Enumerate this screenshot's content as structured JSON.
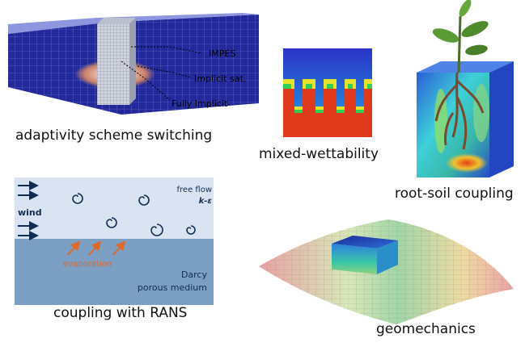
{
  "panels": {
    "adaptivity": {
      "caption": "adaptivity scheme switching",
      "labels": {
        "impes": "IMPES",
        "implicit_sat": "Implicit sat.",
        "fully_implicit": "Fully Implicit"
      }
    },
    "wettability": {
      "caption": "mixed-wettability"
    },
    "root_soil": {
      "caption": "root-soil coupling"
    },
    "rans": {
      "caption": "coupling with RANS",
      "free_flow": "free flow",
      "model": "k-ε",
      "wind": "wind",
      "evaporation": "evaporation",
      "darcy": "Darcy",
      "porous": "porous medium"
    },
    "geomechanics": {
      "caption": "geomechanics"
    }
  },
  "colors": {
    "free_flow_bg": "#d9e3f2",
    "porous_bg": "#7b9ec3",
    "evaporation": "#e06a2a",
    "wind_arrow": "#0f2d52",
    "cube_blue": "#1c2c9a"
  }
}
